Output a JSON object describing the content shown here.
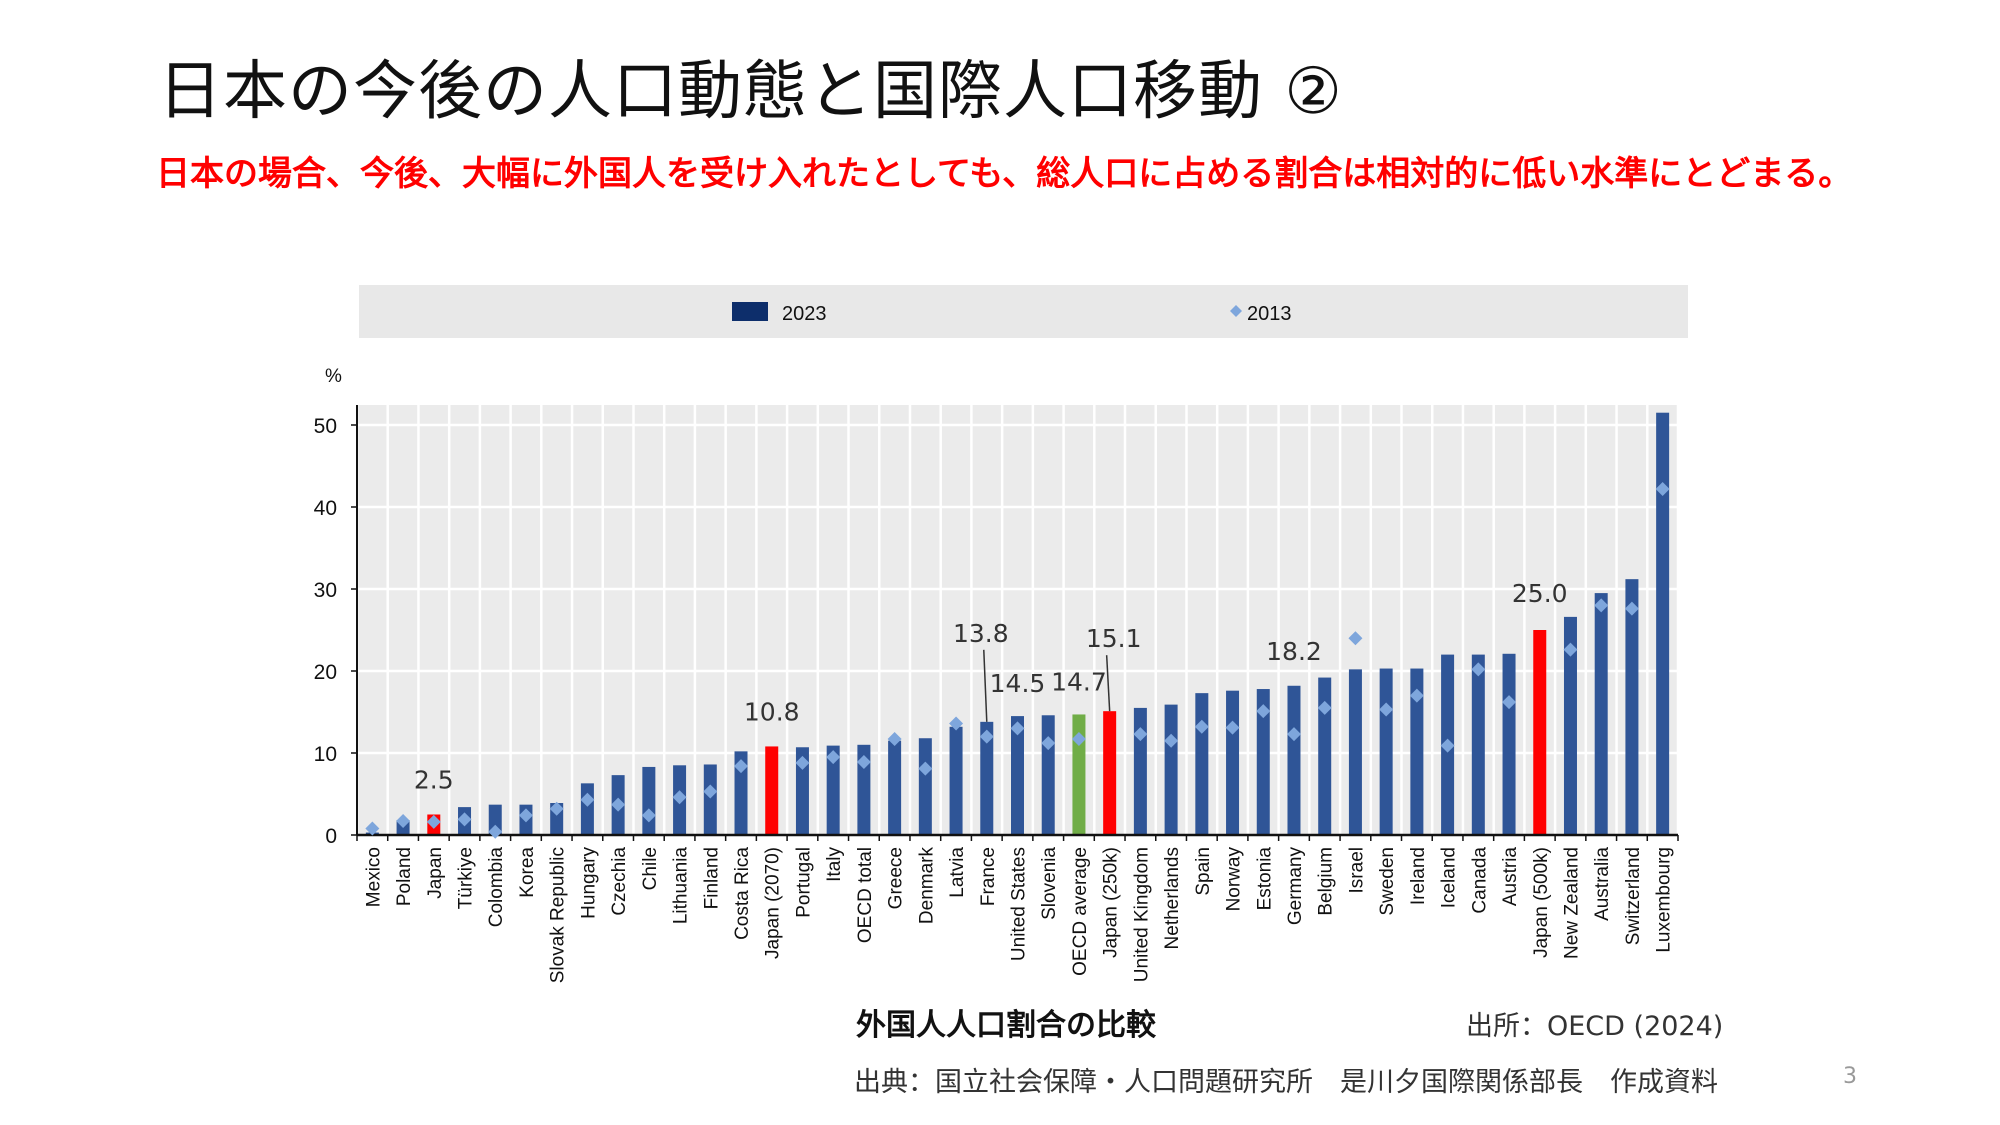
{
  "slide": {
    "title": "日本の今後の人口動態と国際人口移動 ②",
    "subtitle": "日本の場合、今後、大幅に外国人を受け入れたとしても、総人口に占める割合は相対的に低い水準にとどまる。",
    "chart_caption": "外国人人口割合の比較",
    "source": "出所：OECD (2024)",
    "footer": "出典：国立社会保障・人口問題研究所　是川夕国際関係部長　作成資料",
    "page_number": "3"
  },
  "chart_data": {
    "type": "bar",
    "ylabel": "%",
    "ylim": [
      0,
      52
    ],
    "yticks": [
      0,
      10,
      20,
      30,
      40,
      50
    ],
    "grid": true,
    "legend_placement": "top",
    "colors": {
      "bar": "#2f5597",
      "japan": "#ff0000",
      "oecd_average": "#70ad47",
      "marker": "#7ea6dc",
      "legend_bar": "#0d2e6b"
    },
    "categories": [
      "Mexico",
      "Poland",
      "Japan",
      "Türkiye",
      "Colombia",
      "Korea",
      "Slovak Republic",
      "Hungary",
      "Czechia",
      "Chile",
      "Lithuania",
      "Finland",
      "Costa Rica",
      "Japan (2070)",
      "Portugal",
      "Italy",
      "OECD total",
      "Greece",
      "Denmark",
      "Latvia",
      "France",
      "United States",
      "Slovenia",
      "OECD average",
      "Japan (250k)",
      "United Kingdom",
      "Netherlands",
      "Spain",
      "Norway",
      "Estonia",
      "Germany",
      "Belgium",
      "Israel",
      "Sweden",
      "Ireland",
      "Iceland",
      "Canada",
      "Austria",
      "Japan (500k)",
      "New Zealand",
      "Australia",
      "Switzerland",
      "Luxembourg"
    ],
    "highlight_red": [
      "Japan",
      "Japan (2070)",
      "Japan (250k)",
      "Japan (500k)"
    ],
    "highlight_green": [
      "OECD average"
    ],
    "series": [
      {
        "name": "2023",
        "kind": "bar",
        "values": [
          0.3,
          1.8,
          2.5,
          3.4,
          3.7,
          3.7,
          3.9,
          6.3,
          7.3,
          8.3,
          8.5,
          8.6,
          10.2,
          10.8,
          10.7,
          10.9,
          11.0,
          11.5,
          11.8,
          13.2,
          13.8,
          14.5,
          14.6,
          14.7,
          15.1,
          15.5,
          15.9,
          17.3,
          17.6,
          17.8,
          18.2,
          19.2,
          20.2,
          20.3,
          20.3,
          22.0,
          22.0,
          22.1,
          25.0,
          26.6,
          29.5,
          31.2,
          51.5
        ]
      },
      {
        "name": "2013",
        "kind": "marker",
        "values": [
          0.8,
          1.7,
          1.6,
          1.9,
          0.4,
          2.4,
          3.2,
          4.3,
          3.7,
          2.4,
          4.6,
          5.3,
          8.4,
          null,
          8.8,
          9.5,
          8.9,
          11.7,
          8.1,
          13.6,
          12.0,
          13.0,
          11.2,
          11.7,
          null,
          12.3,
          11.5,
          13.2,
          13.1,
          15.1,
          12.3,
          15.5,
          24.0,
          15.3,
          17.0,
          10.9,
          20.2,
          16.2,
          null,
          22.6,
          28.0,
          27.6,
          42.2
        ]
      }
    ],
    "annotations": [
      {
        "category": "Japan",
        "text": "2.5"
      },
      {
        "category": "Japan (2070)",
        "text": "10.8"
      },
      {
        "category": "France",
        "text": "13.8"
      },
      {
        "category": "United States",
        "text": "14.5"
      },
      {
        "category": "OECD average",
        "text": "14.7"
      },
      {
        "category": "Japan (250k)",
        "text": "15.1"
      },
      {
        "category": "Germany",
        "text": "18.2"
      },
      {
        "category": "Japan (500k)",
        "text": "25.0"
      }
    ]
  }
}
